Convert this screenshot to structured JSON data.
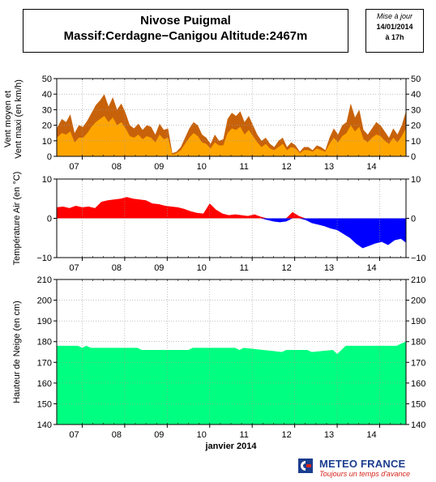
{
  "header": {
    "title_line1": "Nivose Puigmal",
    "title_line2": "Massif:Cerdagne−Canigou Altitude:2467m",
    "update_label": "Mise à jour",
    "update_date": "14/01/2014",
    "update_time": "à 17h"
  },
  "footer": {
    "brand": "METEO FRANCE",
    "tagline": "Toujours un temps d'avance"
  },
  "chart_data": [
    {
      "type": "area",
      "ylabel_line1": "Vent moyen et",
      "ylabel_line2": "Vent maxi (en km/h)",
      "ylim": [
        0,
        50
      ],
      "yticks": [
        0,
        10,
        20,
        30,
        40,
        50
      ],
      "grid": true,
      "x_day_labels": [
        "07",
        "08",
        "09",
        "10",
        "11",
        "12",
        "13",
        "14"
      ],
      "series": [
        {
          "key": "vent_maxi",
          "color": "#c8620a",
          "x": [
            6.4,
            6.52,
            6.62,
            6.72,
            6.82,
            6.92,
            7.02,
            7.12,
            7.22,
            7.32,
            7.42,
            7.52,
            7.62,
            7.72,
            7.82,
            7.92,
            8.02,
            8.12,
            8.22,
            8.32,
            8.42,
            8.52,
            8.62,
            8.72,
            8.82,
            8.92,
            9.02,
            9.12,
            9.22,
            9.32,
            9.42,
            9.52,
            9.62,
            9.72,
            9.82,
            9.92,
            10.02,
            10.12,
            10.22,
            10.32,
            10.42,
            10.52,
            10.62,
            10.72,
            10.82,
            10.92,
            11.02,
            11.12,
            11.22,
            11.32,
            11.42,
            11.52,
            11.62,
            11.72,
            11.82,
            11.92,
            12.02,
            12.12,
            12.22,
            12.32,
            12.42,
            12.52,
            12.62,
            12.72,
            12.82,
            12.92,
            13.02,
            13.12,
            13.22,
            13.32,
            13.42,
            13.52,
            13.62,
            13.72,
            13.82,
            13.92,
            14.02,
            14.12,
            14.22,
            14.32,
            14.42,
            14.52,
            14.62
          ],
          "values": [
            18,
            24,
            22,
            27,
            15,
            20,
            19,
            23,
            28,
            33,
            36,
            40,
            32,
            38,
            30,
            34,
            28,
            20,
            18,
            21,
            17,
            20,
            19,
            14,
            21,
            17,
            18,
            2,
            3,
            6,
            12,
            18,
            22,
            20,
            14,
            12,
            8,
            14,
            10,
            11,
            24,
            28,
            26,
            29,
            22,
            26,
            20,
            14,
            10,
            12,
            8,
            6,
            10,
            12,
            6,
            9,
            7,
            3,
            6,
            6,
            4,
            7,
            6,
            4,
            12,
            18,
            14,
            20,
            22,
            34,
            25,
            30,
            17,
            14,
            18,
            22,
            20,
            16,
            12,
            18,
            14,
            20,
            29
          ]
        },
        {
          "key": "vent_moyen",
          "color": "#ffa500",
          "x": [
            6.4,
            6.52,
            6.62,
            6.72,
            6.82,
            6.92,
            7.02,
            7.12,
            7.22,
            7.32,
            7.42,
            7.52,
            7.62,
            7.72,
            7.82,
            7.92,
            8.02,
            8.12,
            8.22,
            8.32,
            8.42,
            8.52,
            8.62,
            8.72,
            8.82,
            8.92,
            9.02,
            9.12,
            9.22,
            9.32,
            9.42,
            9.52,
            9.62,
            9.72,
            9.82,
            9.92,
            10.02,
            10.12,
            10.22,
            10.32,
            10.42,
            10.52,
            10.62,
            10.72,
            10.82,
            10.92,
            11.02,
            11.12,
            11.22,
            11.32,
            11.42,
            11.52,
            11.62,
            11.72,
            11.82,
            11.92,
            12.02,
            12.12,
            12.22,
            12.32,
            12.42,
            12.52,
            12.62,
            12.72,
            12.82,
            12.92,
            13.02,
            13.12,
            13.22,
            13.32,
            13.42,
            13.52,
            13.62,
            13.72,
            13.82,
            13.92,
            14.02,
            14.12,
            14.22,
            14.32,
            14.42,
            14.52,
            14.62
          ],
          "values": [
            12,
            15,
            14,
            16,
            9,
            12,
            12,
            15,
            19,
            22,
            24,
            26,
            22,
            25,
            20,
            22,
            18,
            13,
            12,
            14,
            11,
            13,
            12,
            9,
            14,
            11,
            12,
            1,
            2,
            4,
            8,
            12,
            15,
            13,
            9,
            8,
            5,
            9,
            7,
            7,
            15,
            18,
            17,
            19,
            14,
            17,
            13,
            9,
            6,
            8,
            5,
            4,
            6,
            8,
            4,
            6,
            5,
            2,
            4,
            4,
            3,
            5,
            4,
            3,
            8,
            12,
            9,
            13,
            15,
            20,
            16,
            19,
            11,
            9,
            12,
            14,
            13,
            10,
            8,
            12,
            9,
            13,
            18
          ]
        }
      ]
    },
    {
      "type": "area",
      "ylabel": "Température Air (en °C)",
      "ylim": [
        -10,
        10
      ],
      "yticks": [
        -10,
        0,
        10
      ],
      "grid": true,
      "x_day_labels": [
        "07",
        "08",
        "09",
        "10",
        "11",
        "12",
        "13",
        "14"
      ],
      "colors": {
        "positive": "#ff0000",
        "negative": "#0000ff"
      },
      "series": [
        {
          "key": "temperature",
          "x": [
            6.4,
            6.55,
            6.7,
            6.85,
            7.0,
            7.15,
            7.3,
            7.45,
            7.6,
            7.75,
            7.9,
            8.05,
            8.2,
            8.35,
            8.5,
            8.65,
            8.8,
            8.95,
            9.1,
            9.25,
            9.4,
            9.55,
            9.7,
            9.85,
            10.0,
            10.15,
            10.3,
            10.45,
            10.6,
            10.75,
            10.9,
            11.05,
            11.2,
            11.35,
            11.5,
            11.65,
            11.8,
            11.95,
            12.1,
            12.25,
            12.4,
            12.55,
            12.7,
            12.85,
            13.0,
            13.15,
            13.3,
            13.45,
            13.6,
            13.75,
            13.9,
            14.05,
            14.2,
            14.35,
            14.5,
            14.62
          ],
          "values": [
            2.8,
            3.0,
            2.6,
            3.2,
            2.8,
            3.0,
            2.6,
            4.2,
            4.6,
            4.8,
            5.0,
            5.4,
            5.0,
            4.8,
            4.6,
            3.8,
            3.6,
            3.2,
            3.0,
            2.8,
            2.4,
            1.8,
            1.4,
            1.2,
            3.8,
            2.2,
            1.2,
            0.8,
            1.0,
            0.8,
            0.6,
            1.0,
            0.4,
            -0.4,
            -0.8,
            -1.0,
            -0.8,
            1.6,
            0.6,
            -0.4,
            -1.2,
            -1.6,
            -2.0,
            -2.6,
            -3.0,
            -4.0,
            -5.0,
            -6.5,
            -7.6,
            -7.0,
            -6.4,
            -6.0,
            -6.8,
            -5.6,
            -5.2,
            -6.2
          ]
        }
      ]
    },
    {
      "type": "area",
      "ylabel": "Hauteur de Neige (en cm)",
      "xlabel": "janvier 2014",
      "ylim": [
        140,
        210
      ],
      "yticks": [
        140,
        150,
        160,
        170,
        180,
        190,
        200,
        210
      ],
      "grid": true,
      "x_day_labels": [
        "07",
        "08",
        "09",
        "10",
        "11",
        "12",
        "13",
        "14"
      ],
      "series": [
        {
          "key": "hauteur_neige",
          "color": "#00ff80",
          "x": [
            6.4,
            6.9,
            7.0,
            7.1,
            7.2,
            8.3,
            8.4,
            9.5,
            9.6,
            10.6,
            10.7,
            10.8,
            11.7,
            11.8,
            12.3,
            12.4,
            12.9,
            13.0,
            13.2,
            14.4,
            14.5,
            14.62
          ],
          "values": [
            178,
            178,
            177,
            178,
            177,
            177,
            176,
            176,
            177,
            177,
            176,
            177,
            175,
            176,
            176,
            175,
            176,
            174,
            178,
            178,
            179,
            180
          ]
        }
      ]
    }
  ]
}
